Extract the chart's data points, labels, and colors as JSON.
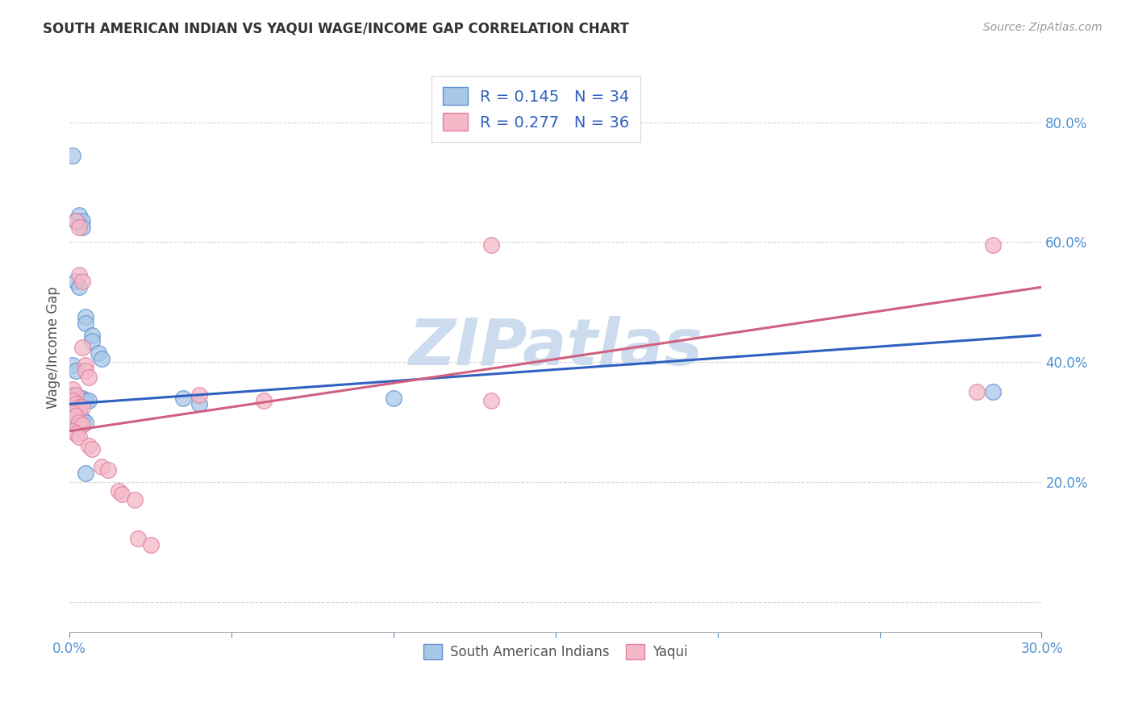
{
  "title": "SOUTH AMERICAN INDIAN VS YAQUI WAGE/INCOME GAP CORRELATION CHART",
  "source": "Source: ZipAtlas.com",
  "ylabel": "Wage/Income Gap",
  "xlim": [
    0.0,
    0.3
  ],
  "ylim": [
    -0.05,
    0.9
  ],
  "yticks": [
    0.0,
    0.2,
    0.4,
    0.6,
    0.8
  ],
  "xticks": [
    0.0,
    0.05,
    0.1,
    0.15,
    0.2,
    0.25,
    0.3
  ],
  "ytick_labels": [
    "",
    "20.0%",
    "40.0%",
    "60.0%",
    "80.0%"
  ],
  "R_blue": "0.145",
  "N_blue": "34",
  "R_pink": "0.277",
  "N_pink": "36",
  "blue_fill": "#a8c8e8",
  "pink_fill": "#f4b8c8",
  "blue_edge": "#6090d0",
  "pink_edge": "#e080a0",
  "line_blue": "#3060c0",
  "line_pink": "#d06080",
  "axis_tick_color": "#5090d0",
  "legend_text_color": "#3060c0",
  "watermark_color": "#ccdcee",
  "title_color": "#333333",
  "ylabel_color": "#555555",
  "grid_color": "#cccccc",
  "blue_line_ends": [
    0.0,
    0.3,
    0.33,
    0.445
  ],
  "pink_line_ends": [
    0.0,
    0.3,
    0.285,
    0.525
  ],
  "blue_scatter": [
    [
      0.001,
      0.745
    ],
    [
      0.003,
      0.645
    ],
    [
      0.004,
      0.635
    ],
    [
      0.004,
      0.625
    ],
    [
      0.002,
      0.635
    ],
    [
      0.002,
      0.535
    ],
    [
      0.003,
      0.525
    ],
    [
      0.005,
      0.475
    ],
    [
      0.005,
      0.465
    ],
    [
      0.007,
      0.445
    ],
    [
      0.007,
      0.435
    ],
    [
      0.009,
      0.415
    ],
    [
      0.01,
      0.405
    ],
    [
      0.001,
      0.395
    ],
    [
      0.002,
      0.385
    ],
    [
      0.001,
      0.345
    ],
    [
      0.002,
      0.345
    ],
    [
      0.003,
      0.34
    ],
    [
      0.004,
      0.34
    ],
    [
      0.005,
      0.335
    ],
    [
      0.006,
      0.335
    ],
    [
      0.001,
      0.325
    ],
    [
      0.002,
      0.325
    ],
    [
      0.003,
      0.32
    ],
    [
      0.002,
      0.315
    ],
    [
      0.001,
      0.305
    ],
    [
      0.003,
      0.305
    ],
    [
      0.004,
      0.305
    ],
    [
      0.005,
      0.3
    ],
    [
      0.005,
      0.215
    ],
    [
      0.035,
      0.34
    ],
    [
      0.04,
      0.33
    ],
    [
      0.1,
      0.34
    ],
    [
      0.285,
      0.35
    ]
  ],
  "pink_scatter": [
    [
      0.002,
      0.635
    ],
    [
      0.003,
      0.625
    ],
    [
      0.003,
      0.545
    ],
    [
      0.004,
      0.535
    ],
    [
      0.004,
      0.425
    ],
    [
      0.005,
      0.395
    ],
    [
      0.005,
      0.385
    ],
    [
      0.006,
      0.375
    ],
    [
      0.001,
      0.355
    ],
    [
      0.002,
      0.345
    ],
    [
      0.001,
      0.335
    ],
    [
      0.002,
      0.33
    ],
    [
      0.003,
      0.325
    ],
    [
      0.004,
      0.325
    ],
    [
      0.001,
      0.315
    ],
    [
      0.002,
      0.31
    ],
    [
      0.003,
      0.3
    ],
    [
      0.004,
      0.295
    ],
    [
      0.001,
      0.285
    ],
    [
      0.002,
      0.28
    ],
    [
      0.003,
      0.275
    ],
    [
      0.006,
      0.26
    ],
    [
      0.007,
      0.255
    ],
    [
      0.01,
      0.225
    ],
    [
      0.012,
      0.22
    ],
    [
      0.015,
      0.185
    ],
    [
      0.016,
      0.18
    ],
    [
      0.02,
      0.17
    ],
    [
      0.021,
      0.105
    ],
    [
      0.025,
      0.095
    ],
    [
      0.04,
      0.345
    ],
    [
      0.06,
      0.335
    ],
    [
      0.13,
      0.335
    ],
    [
      0.285,
      0.595
    ],
    [
      0.13,
      0.595
    ],
    [
      0.28,
      0.35
    ]
  ]
}
